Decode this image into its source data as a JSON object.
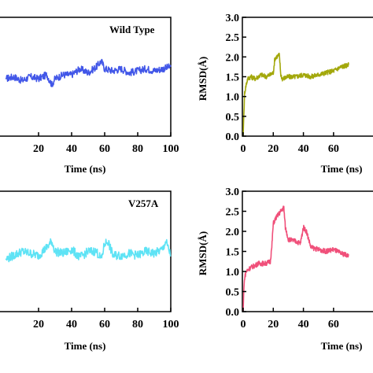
{
  "chart_data": [
    {
      "type": "line",
      "panel_label": "Wild Type",
      "label_color": "#e0142c",
      "xlabel": "Time (ns)",
      "ylabel": "",
      "xlim": [
        0,
        100
      ],
      "xticks": [
        "20",
        "40",
        "60",
        "80",
        "100"
      ],
      "yticks": [],
      "series": [
        {
          "color": "#4257e8",
          "x": [
            0,
            5,
            10,
            15,
            20,
            25,
            28,
            30,
            35,
            40,
            45,
            50,
            55,
            58,
            60,
            65,
            70,
            75,
            80,
            85,
            90,
            95,
            100
          ],
          "y": [
            1.45,
            1.5,
            1.4,
            1.5,
            1.45,
            1.55,
            1.3,
            1.45,
            1.55,
            1.55,
            1.7,
            1.6,
            1.75,
            1.9,
            1.7,
            1.65,
            1.7,
            1.6,
            1.65,
            1.7,
            1.65,
            1.7,
            1.75
          ]
        }
      ]
    },
    {
      "type": "line",
      "panel_label": "",
      "label_color": "#e0142c",
      "xlabel": "Time (ns)",
      "ylabel": "RMSD(Å)",
      "xlim": [
        0,
        70
      ],
      "ylim": [
        0,
        3
      ],
      "xticks": [
        "0",
        "20",
        "40",
        "60"
      ],
      "yticks": [
        "0.0",
        "0.5",
        "1.0",
        "1.5",
        "2.0",
        "2.5",
        "3.0"
      ],
      "series": [
        {
          "color": "#a3a80c",
          "x": [
            0,
            0.5,
            1,
            2,
            3,
            5,
            8,
            10,
            12,
            15,
            18,
            20,
            21,
            22,
            24,
            25,
            26,
            30,
            35,
            40,
            45,
            50,
            55,
            60,
            65,
            70
          ],
          "y": [
            0.0,
            0.6,
            1.1,
            1.3,
            1.45,
            1.5,
            1.45,
            1.5,
            1.55,
            1.5,
            1.55,
            1.6,
            1.95,
            2.0,
            2.05,
            1.55,
            1.45,
            1.5,
            1.5,
            1.55,
            1.5,
            1.55,
            1.6,
            1.65,
            1.75,
            1.8
          ]
        }
      ]
    },
    {
      "type": "line",
      "panel_label": "V257A",
      "label_color": "#e0142c",
      "xlabel": "Time (ns)",
      "ylabel": "",
      "xlim": [
        0,
        100
      ],
      "xticks": [
        "20",
        "40",
        "60",
        "80",
        "100"
      ],
      "yticks": [],
      "series": [
        {
          "color": "#5ee3f5",
          "x": [
            0,
            5,
            10,
            15,
            20,
            25,
            28,
            30,
            35,
            40,
            45,
            50,
            55,
            58,
            60,
            62,
            65,
            70,
            75,
            80,
            85,
            90,
            95,
            97,
            100
          ],
          "y": [
            1.3,
            1.4,
            1.5,
            1.45,
            1.4,
            1.6,
            1.75,
            1.5,
            1.45,
            1.55,
            1.35,
            1.5,
            1.5,
            1.3,
            1.7,
            1.75,
            1.4,
            1.4,
            1.45,
            1.4,
            1.5,
            1.45,
            1.55,
            1.75,
            1.4
          ]
        }
      ]
    },
    {
      "type": "line",
      "panel_label": "",
      "label_color": "#e0142c",
      "xlabel": "Time (ns)",
      "ylabel": "RMSD(Å)",
      "xlim": [
        0,
        70
      ],
      "ylim": [
        0,
        3
      ],
      "xticks": [
        "0",
        "20",
        "40",
        "60"
      ],
      "yticks": [
        "0.0",
        "0.5",
        "1.0",
        "1.5",
        "2.0",
        "2.5",
        "3.0"
      ],
      "series": [
        {
          "color": "#f0507a",
          "x": [
            0,
            0.5,
            1,
            2,
            5,
            8,
            10,
            15,
            18,
            19,
            20,
            22,
            25,
            27,
            28,
            30,
            35,
            38,
            40,
            42,
            45,
            50,
            55,
            60,
            65,
            70
          ],
          "y": [
            0.0,
            0.6,
            0.85,
            1.0,
            1.1,
            1.15,
            1.2,
            1.2,
            1.25,
            1.6,
            2.2,
            2.35,
            2.5,
            2.6,
            2.1,
            1.8,
            1.75,
            1.7,
            2.1,
            2.0,
            1.6,
            1.55,
            1.5,
            1.55,
            1.45,
            1.4
          ]
        }
      ]
    }
  ]
}
